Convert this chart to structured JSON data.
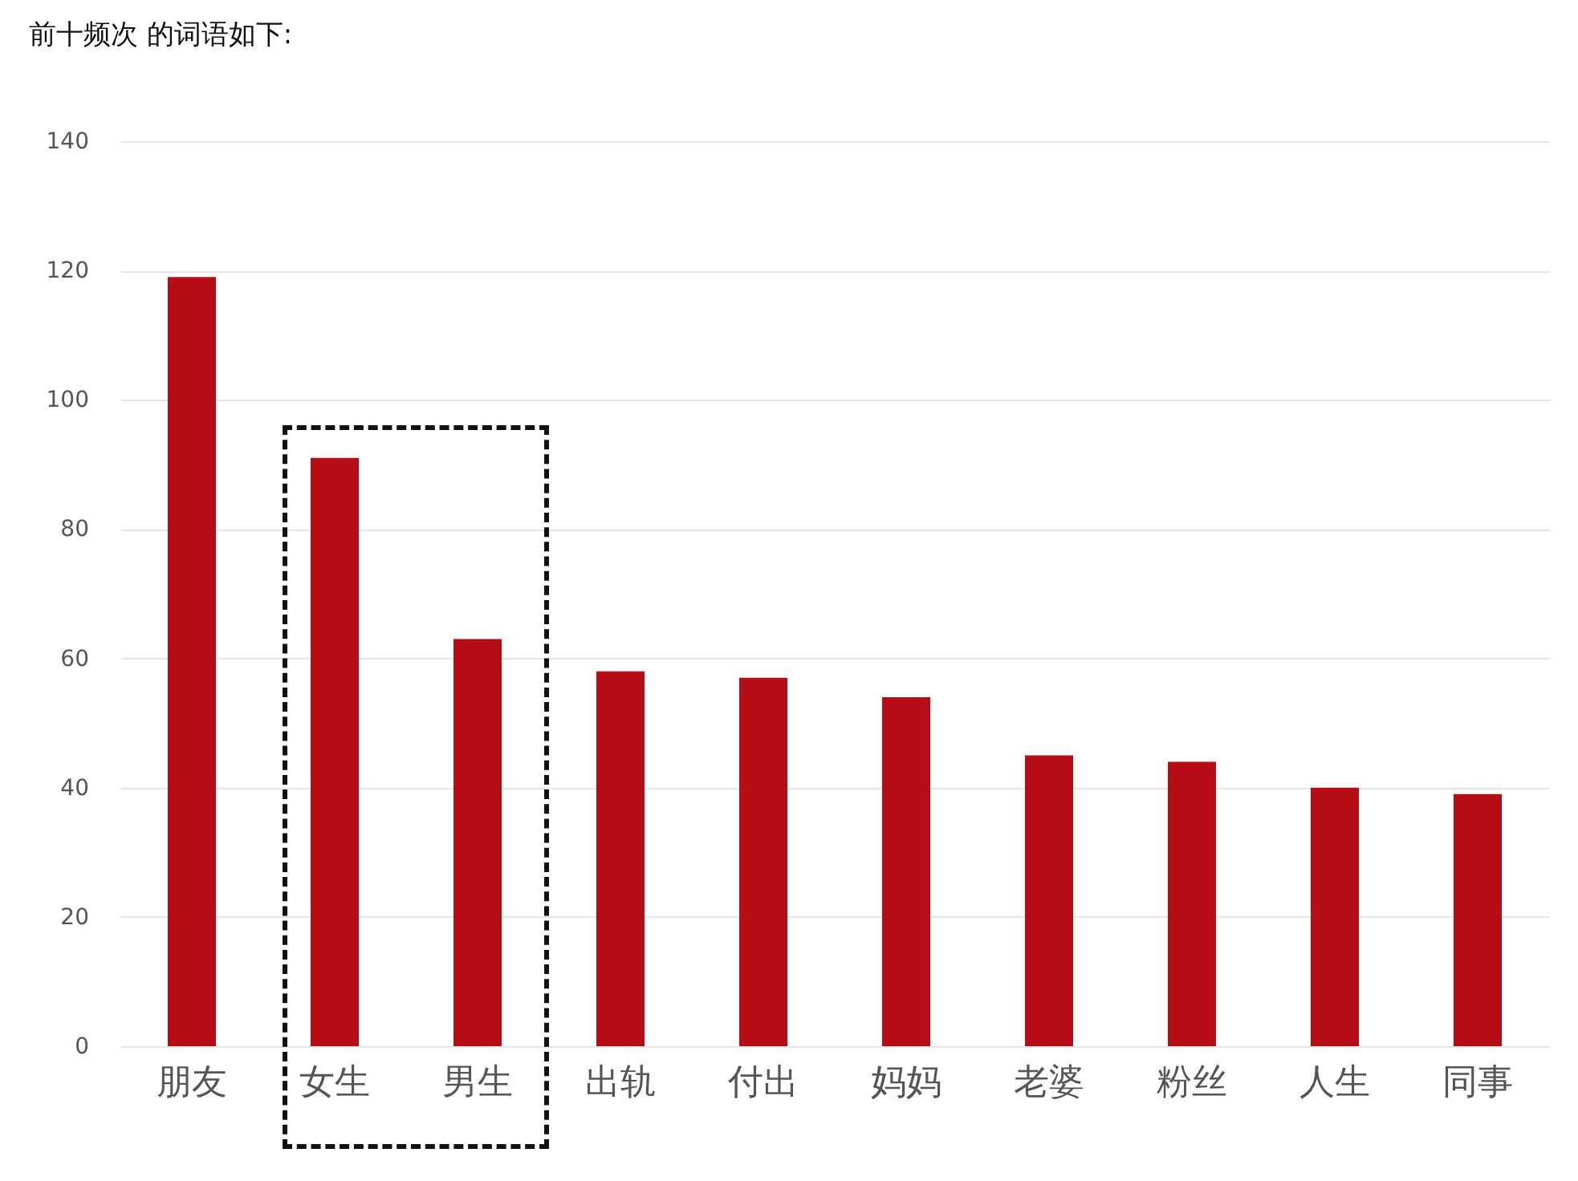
{
  "chart_data": {
    "type": "bar",
    "title": "前十频次 的词语如下:",
    "categories": [
      "朋友",
      "女生",
      "男生",
      "出轨",
      "付出",
      "妈妈",
      "老婆",
      "粉丝",
      "人生",
      "同事"
    ],
    "values": [
      119,
      91,
      63,
      58,
      57,
      54,
      45,
      44,
      40,
      39
    ],
    "color": "#b70d16",
    "ylim": [
      0,
      140
    ],
    "yticks": [
      0,
      20,
      40,
      60,
      80,
      100,
      120,
      140
    ],
    "grid": "y"
  }
}
